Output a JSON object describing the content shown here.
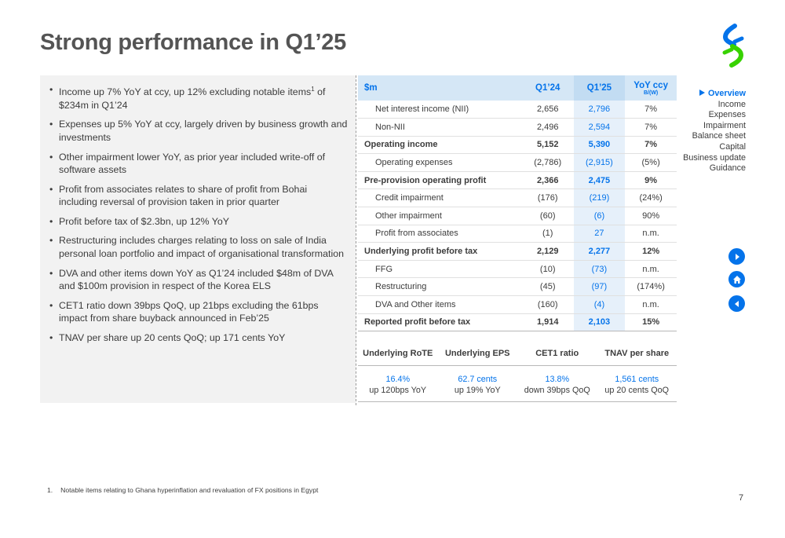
{
  "title": "Strong performance in Q1’25",
  "bullets": [
    {
      "text": "Income up 7% YoY at ccy, up 12% excluding notable items",
      "sup": "1",
      "text_after": " of $234m in Q1’24"
    },
    {
      "text": "Expenses up 5% YoY at ccy, largely driven by business growth and investments"
    },
    {
      "text": "Other impairment lower YoY, as prior year included write-off of software assets"
    },
    {
      "text": "Profit from associates relates to share of profit from Bohai including reversal of provision taken in prior quarter"
    },
    {
      "text": "Profit before tax of $2.3bn, up 12% YoY"
    },
    {
      "text": "Restructuring includes charges relating to loss on sale of India personal loan portfolio and impact of organisational transformation"
    },
    {
      "text": "DVA and other items down YoY as Q1’24 included $48m of DVA and $100m provision in respect of the Korea ELS"
    },
    {
      "text": "CET1 ratio down 39bps QoQ, up 21bps excluding the 61bps impact from share buyback announced in Feb’25"
    },
    {
      "text": "TNAV per share up 20 cents QoQ; up 171 cents YoY"
    }
  ],
  "table": {
    "headers": {
      "label": "$m",
      "q124": "Q1’24",
      "q125": "Q1’25",
      "yoy": "YoY ccy",
      "yoy_sub": "B/(W)"
    },
    "rows": [
      {
        "label": "Net interest income (NII)",
        "q124": "2,656",
        "q125": "2,796",
        "yoy": "7%"
      },
      {
        "label": "Non-NII",
        "q124": "2,496",
        "q125": "2,594",
        "yoy": "7%"
      },
      {
        "label": "Operating income",
        "q124": "5,152",
        "q125": "5,390",
        "yoy": "7%"
      },
      {
        "label": "Operating expenses",
        "q124": "(2,786)",
        "q125": "(2,915)",
        "yoy": "(5%)"
      },
      {
        "label": "Pre-provision operating profit",
        "q124": "2,366",
        "q125": "2,475",
        "yoy": "9%"
      },
      {
        "label": "Credit impairment",
        "q124": "(176)",
        "q125": "(219)",
        "yoy": "(24%)"
      },
      {
        "label": "Other impairment",
        "q124": "(60)",
        "q125": "(6)",
        "yoy": "90%"
      },
      {
        "label": "Profit from associates",
        "q124": "(1)",
        "q125": "27",
        "yoy": "n.m."
      },
      {
        "label": "Underlying profit before tax",
        "q124": "2,129",
        "q125": "2,277",
        "yoy": "12%"
      },
      {
        "label": "FFG",
        "q124": "(10)",
        "q125": "(73)",
        "yoy": "n.m."
      },
      {
        "label": "Restructuring",
        "q124": "(45)",
        "q125": "(97)",
        "yoy": "(174%)"
      },
      {
        "label": "DVA and Other items",
        "q124": "(160)",
        "q125": "(4)",
        "yoy": "n.m."
      },
      {
        "label": "Reported profit before tax",
        "q124": "1,914",
        "q125": "2,103",
        "yoy": "15%"
      }
    ]
  },
  "kpis": [
    {
      "label": "Underlying RoTE",
      "value": "16.4%",
      "sub": "up 120bps YoY"
    },
    {
      "label": "Underlying EPS",
      "value": "62.7 cents",
      "sub": "up 19% YoY"
    },
    {
      "label": "CET1 ratio",
      "value": "13.8%",
      "sub": "down 39bps QoQ"
    },
    {
      "label": "TNAV per share",
      "value": "1,561 cents",
      "sub": "up 20 cents QoQ"
    }
  ],
  "nav": {
    "active": "Overview",
    "items": [
      "Income",
      "Expenses",
      "Impairment",
      "Balance sheet",
      "Capital",
      "Business update",
      "Guidance"
    ]
  },
  "icons": {
    "next": "next-arrow-icon",
    "home": "home-icon",
    "prev": "prev-arrow-icon",
    "logo": "bank-logo"
  },
  "colors": {
    "accent": "#0473ea",
    "logo_blue": "#0473ea",
    "logo_green": "#38d200"
  },
  "footnote": {
    "num": "1.",
    "text": "Notable items relating to Ghana hyperinflation and revaluation of FX positions in Egypt"
  },
  "page_number": "7"
}
